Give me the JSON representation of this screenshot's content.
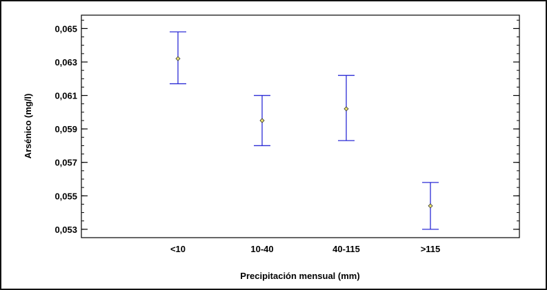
{
  "chart_data": {
    "type": "scatter",
    "subtype": "means-with-error-bars",
    "title": "",
    "xlabel": "Precipitación mensual (mm)",
    "ylabel": "Arsénico (mg/l)",
    "categories": [
      "<10",
      "10-40",
      "40-115",
      ">115"
    ],
    "y_ticks": [
      "0,053",
      "0,055",
      "0,057",
      "0,059",
      "0,061",
      "0,063",
      "0,065"
    ],
    "y_tick_values": [
      0.053,
      0.055,
      0.057,
      0.059,
      0.061,
      0.063,
      0.065
    ],
    "ylim": [
      0.0525,
      0.0658
    ],
    "points": [
      {
        "category": "<10",
        "mean": 0.0632,
        "lower": 0.0617,
        "upper": 0.0648
      },
      {
        "category": "10-40",
        "mean": 0.0595,
        "lower": 0.058,
        "upper": 0.061
      },
      {
        "category": "40-115",
        "mean": 0.0602,
        "lower": 0.0583,
        "upper": 0.0622
      },
      {
        "category": ">115",
        "mean": 0.0544,
        "lower": 0.053,
        "upper": 0.0558
      }
    ],
    "grid": false,
    "legend": "none",
    "colors": {
      "error_bar": "#2b2bd6",
      "marker_fill": "#e8e070",
      "marker_stroke": "#333333"
    }
  }
}
